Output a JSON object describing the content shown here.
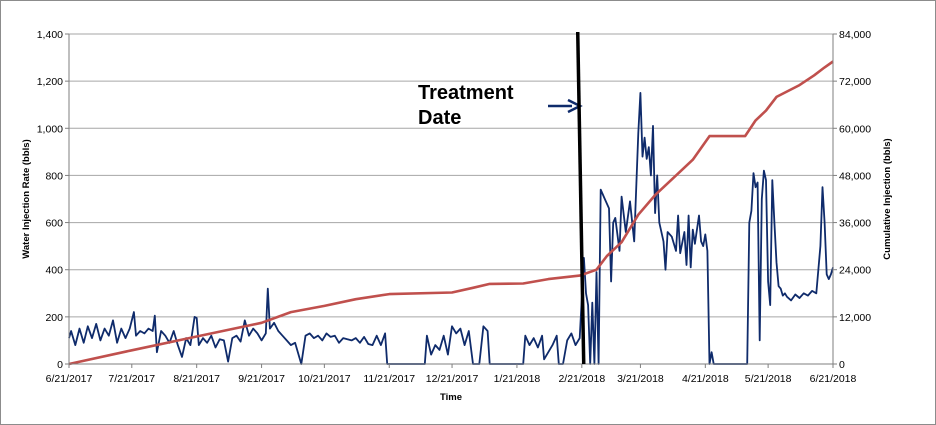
{
  "chart_data": {
    "type": "line",
    "xlabel": "Time",
    "ylabel": "Water Injection Rate (bbls)",
    "y2label": "Cumulative Injection (bbls)",
    "xlim": [
      "2017-06-21",
      "2018-06-21"
    ],
    "ylim": [
      0,
      1400
    ],
    "y2lim": [
      0,
      84000
    ],
    "grid": "horizontal",
    "x_tick_labels": [
      "6/21/2017",
      "7/21/2017",
      "8/21/2017",
      "9/21/2017",
      "10/21/2017",
      "11/21/2017",
      "12/21/2017",
      "1/21/2018",
      "2/21/2018",
      "3/21/2018",
      "4/21/2018",
      "5/21/2018",
      "6/21/2018"
    ],
    "y_tick_labels": [
      "0",
      "200",
      "400",
      "600",
      "800",
      "1,000",
      "1,200",
      "1,400"
    ],
    "y2_tick_labels": [
      "0",
      "12,000",
      "24,000",
      "36,000",
      "48,000",
      "60,000",
      "72,000",
      "84,000"
    ],
    "annotation": {
      "text_line1": "Treatment",
      "text_line2": "Date",
      "date": "2018-02-20"
    },
    "series": [
      {
        "name": "Water Injection Rate",
        "axis": "left",
        "color": "#0f2b6b",
        "points": [
          [
            "2017-06-21",
            110
          ],
          [
            "2017-06-22",
            140
          ],
          [
            "2017-06-24",
            80
          ],
          [
            "2017-06-26",
            150
          ],
          [
            "2017-06-28",
            90
          ],
          [
            "2017-06-30",
            160
          ],
          [
            "2017-07-02",
            110
          ],
          [
            "2017-07-04",
            170
          ],
          [
            "2017-07-06",
            100
          ],
          [
            "2017-07-08",
            150
          ],
          [
            "2017-07-10",
            120
          ],
          [
            "2017-07-12",
            185
          ],
          [
            "2017-07-14",
            90
          ],
          [
            "2017-07-16",
            150
          ],
          [
            "2017-07-18",
            110
          ],
          [
            "2017-07-20",
            150
          ],
          [
            "2017-07-22",
            220
          ],
          [
            "2017-07-23",
            120
          ],
          [
            "2017-07-25",
            140
          ],
          [
            "2017-07-27",
            130
          ],
          [
            "2017-07-29",
            150
          ],
          [
            "2017-07-31",
            140
          ],
          [
            "2017-08-01",
            205
          ],
          [
            "2017-08-02",
            50
          ],
          [
            "2017-08-04",
            140
          ],
          [
            "2017-08-06",
            120
          ],
          [
            "2017-08-08",
            90
          ],
          [
            "2017-08-10",
            140
          ],
          [
            "2017-08-12",
            80
          ],
          [
            "2017-08-14",
            30
          ],
          [
            "2017-08-16",
            110
          ],
          [
            "2017-08-18",
            80
          ],
          [
            "2017-08-20",
            200
          ],
          [
            "2017-08-21",
            195
          ],
          [
            "2017-08-22",
            80
          ],
          [
            "2017-08-24",
            110
          ],
          [
            "2017-08-26",
            90
          ],
          [
            "2017-08-28",
            120
          ],
          [
            "2017-08-30",
            70
          ],
          [
            "2017-09-01",
            105
          ],
          [
            "2017-09-03",
            100
          ],
          [
            "2017-09-05",
            10
          ],
          [
            "2017-09-07",
            110
          ],
          [
            "2017-09-09",
            120
          ],
          [
            "2017-09-11",
            95
          ],
          [
            "2017-09-13",
            185
          ],
          [
            "2017-09-15",
            120
          ],
          [
            "2017-09-17",
            150
          ],
          [
            "2017-09-19",
            130
          ],
          [
            "2017-09-21",
            100
          ],
          [
            "2017-09-23",
            130
          ],
          [
            "2017-09-24",
            320
          ],
          [
            "2017-09-25",
            150
          ],
          [
            "2017-09-27",
            175
          ],
          [
            "2017-09-29",
            140
          ],
          [
            "2017-10-01",
            120
          ],
          [
            "2017-10-03",
            100
          ],
          [
            "2017-10-05",
            80
          ],
          [
            "2017-10-07",
            90
          ],
          [
            "2017-10-09",
            30
          ],
          [
            "2017-10-10",
            0
          ],
          [
            "2017-10-12",
            120
          ],
          [
            "2017-10-14",
            130
          ],
          [
            "2017-10-16",
            110
          ],
          [
            "2017-10-18",
            120
          ],
          [
            "2017-10-20",
            100
          ],
          [
            "2017-10-22",
            130
          ],
          [
            "2017-10-24",
            115
          ],
          [
            "2017-10-26",
            120
          ],
          [
            "2017-10-28",
            90
          ],
          [
            "2017-10-30",
            110
          ],
          [
            "2017-11-01",
            105
          ],
          [
            "2017-11-03",
            100
          ],
          [
            "2017-11-05",
            110
          ],
          [
            "2017-11-07",
            90
          ],
          [
            "2017-11-09",
            115
          ],
          [
            "2017-11-11",
            85
          ],
          [
            "2017-11-13",
            80
          ],
          [
            "2017-11-15",
            120
          ],
          [
            "2017-11-17",
            80
          ],
          [
            "2017-11-19",
            130
          ],
          [
            "2017-11-20",
            0
          ],
          [
            "2017-12-08",
            0
          ],
          [
            "2017-12-09",
            120
          ],
          [
            "2017-12-11",
            40
          ],
          [
            "2017-12-13",
            80
          ],
          [
            "2017-12-15",
            60
          ],
          [
            "2017-12-17",
            120
          ],
          [
            "2017-12-19",
            40
          ],
          [
            "2017-12-21",
            160
          ],
          [
            "2017-12-23",
            130
          ],
          [
            "2017-12-25",
            150
          ],
          [
            "2017-12-27",
            80
          ],
          [
            "2017-12-29",
            140
          ],
          [
            "2017-12-31",
            0
          ],
          [
            "2018-01-03",
            0
          ],
          [
            "2018-01-05",
            160
          ],
          [
            "2018-01-07",
            140
          ],
          [
            "2018-01-08",
            0
          ],
          [
            "2018-01-24",
            0
          ],
          [
            "2018-01-25",
            120
          ],
          [
            "2018-01-27",
            80
          ],
          [
            "2018-01-29",
            110
          ],
          [
            "2018-01-31",
            70
          ],
          [
            "2018-02-02",
            120
          ],
          [
            "2018-02-03",
            20
          ],
          [
            "2018-02-05",
            50
          ],
          [
            "2018-02-07",
            80
          ],
          [
            "2018-02-09",
            120
          ],
          [
            "2018-02-10",
            0
          ],
          [
            "2018-02-12",
            0
          ],
          [
            "2018-02-14",
            100
          ],
          [
            "2018-02-16",
            130
          ],
          [
            "2018-02-18",
            80
          ],
          [
            "2018-02-20",
            110
          ],
          [
            "2018-02-22",
            450
          ],
          [
            "2018-02-23",
            300
          ],
          [
            "2018-02-24",
            250
          ],
          [
            "2018-02-25",
            0
          ],
          [
            "2018-02-26",
            260
          ],
          [
            "2018-02-27",
            0
          ],
          [
            "2018-02-28",
            390
          ],
          [
            "2018-03-01",
            0
          ],
          [
            "2018-03-02",
            740
          ],
          [
            "2018-03-04",
            700
          ],
          [
            "2018-03-06",
            660
          ],
          [
            "2018-03-07",
            350
          ],
          [
            "2018-03-08",
            600
          ],
          [
            "2018-03-09",
            620
          ],
          [
            "2018-03-11",
            480
          ],
          [
            "2018-03-12",
            710
          ],
          [
            "2018-03-14",
            560
          ],
          [
            "2018-03-16",
            690
          ],
          [
            "2018-03-18",
            520
          ],
          [
            "2018-03-20",
            980
          ],
          [
            "2018-03-21",
            1150
          ],
          [
            "2018-03-22",
            880
          ],
          [
            "2018-03-23",
            960
          ],
          [
            "2018-03-24",
            870
          ],
          [
            "2018-03-25",
            920
          ],
          [
            "2018-03-26",
            800
          ],
          [
            "2018-03-27",
            1010
          ],
          [
            "2018-03-28",
            640
          ],
          [
            "2018-03-29",
            800
          ],
          [
            "2018-03-30",
            600
          ],
          [
            "2018-04-01",
            520
          ],
          [
            "2018-04-02",
            400
          ],
          [
            "2018-04-03",
            560
          ],
          [
            "2018-04-05",
            540
          ],
          [
            "2018-04-07",
            480
          ],
          [
            "2018-04-08",
            630
          ],
          [
            "2018-04-09",
            470
          ],
          [
            "2018-04-11",
            560
          ],
          [
            "2018-04-12",
            420
          ],
          [
            "2018-04-13",
            630
          ],
          [
            "2018-04-14",
            410
          ],
          [
            "2018-04-15",
            570
          ],
          [
            "2018-04-16",
            510
          ],
          [
            "2018-04-18",
            630
          ],
          [
            "2018-04-19",
            520
          ],
          [
            "2018-04-20",
            500
          ],
          [
            "2018-04-21",
            550
          ],
          [
            "2018-04-22",
            480
          ],
          [
            "2018-04-23",
            0
          ],
          [
            "2018-04-24",
            50
          ],
          [
            "2018-04-25",
            0
          ],
          [
            "2018-05-11",
            0
          ],
          [
            "2018-05-12",
            600
          ],
          [
            "2018-05-13",
            650
          ],
          [
            "2018-05-14",
            810
          ],
          [
            "2018-05-15",
            750
          ],
          [
            "2018-05-16",
            770
          ],
          [
            "2018-05-17",
            100
          ],
          [
            "2018-05-18",
            700
          ],
          [
            "2018-05-19",
            820
          ],
          [
            "2018-05-20",
            780
          ],
          [
            "2018-05-21",
            350
          ],
          [
            "2018-05-22",
            250
          ],
          [
            "2018-05-23",
            780
          ],
          [
            "2018-05-24",
            600
          ],
          [
            "2018-05-25",
            430
          ],
          [
            "2018-05-26",
            330
          ],
          [
            "2018-05-27",
            320
          ],
          [
            "2018-05-28",
            290
          ],
          [
            "2018-05-29",
            300
          ],
          [
            "2018-05-30",
            285
          ],
          [
            "2018-06-01",
            270
          ],
          [
            "2018-06-03",
            295
          ],
          [
            "2018-06-05",
            280
          ],
          [
            "2018-06-07",
            300
          ],
          [
            "2018-06-09",
            290
          ],
          [
            "2018-06-11",
            310
          ],
          [
            "2018-06-13",
            300
          ],
          [
            "2018-06-15",
            500
          ],
          [
            "2018-06-16",
            750
          ],
          [
            "2018-06-17",
            600
          ],
          [
            "2018-06-18",
            380
          ],
          [
            "2018-06-19",
            360
          ],
          [
            "2018-06-20",
            380
          ],
          [
            "2018-06-21",
            410
          ]
        ]
      },
      {
        "name": "Cumulative Injection",
        "axis": "right",
        "color": "#c0504d",
        "points": [
          [
            "2017-06-21",
            0
          ],
          [
            "2017-07-21",
            3500
          ],
          [
            "2017-08-21",
            7000
          ],
          [
            "2017-09-21",
            10500
          ],
          [
            "2017-10-05",
            13200
          ],
          [
            "2017-10-21",
            14800
          ],
          [
            "2017-11-05",
            16500
          ],
          [
            "2017-11-21",
            17800
          ],
          [
            "2017-12-21",
            18200
          ],
          [
            "2017-12-31",
            19400
          ],
          [
            "2018-01-08",
            20400
          ],
          [
            "2018-01-24",
            20500
          ],
          [
            "2018-02-05",
            21600
          ],
          [
            "2018-02-20",
            22500
          ],
          [
            "2018-02-28",
            24000
          ],
          [
            "2018-03-05",
            27500
          ],
          [
            "2018-03-12",
            31000
          ],
          [
            "2018-03-20",
            38000
          ],
          [
            "2018-03-28",
            43000
          ],
          [
            "2018-04-05",
            47000
          ],
          [
            "2018-04-15",
            52000
          ],
          [
            "2018-04-23",
            58000
          ],
          [
            "2018-05-10",
            58000
          ],
          [
            "2018-05-15",
            62000
          ],
          [
            "2018-05-20",
            64500
          ],
          [
            "2018-05-25",
            68000
          ],
          [
            "2018-06-05",
            71000
          ],
          [
            "2018-06-12",
            73500
          ],
          [
            "2018-06-17",
            75500
          ],
          [
            "2018-06-21",
            77000
          ]
        ]
      }
    ]
  }
}
